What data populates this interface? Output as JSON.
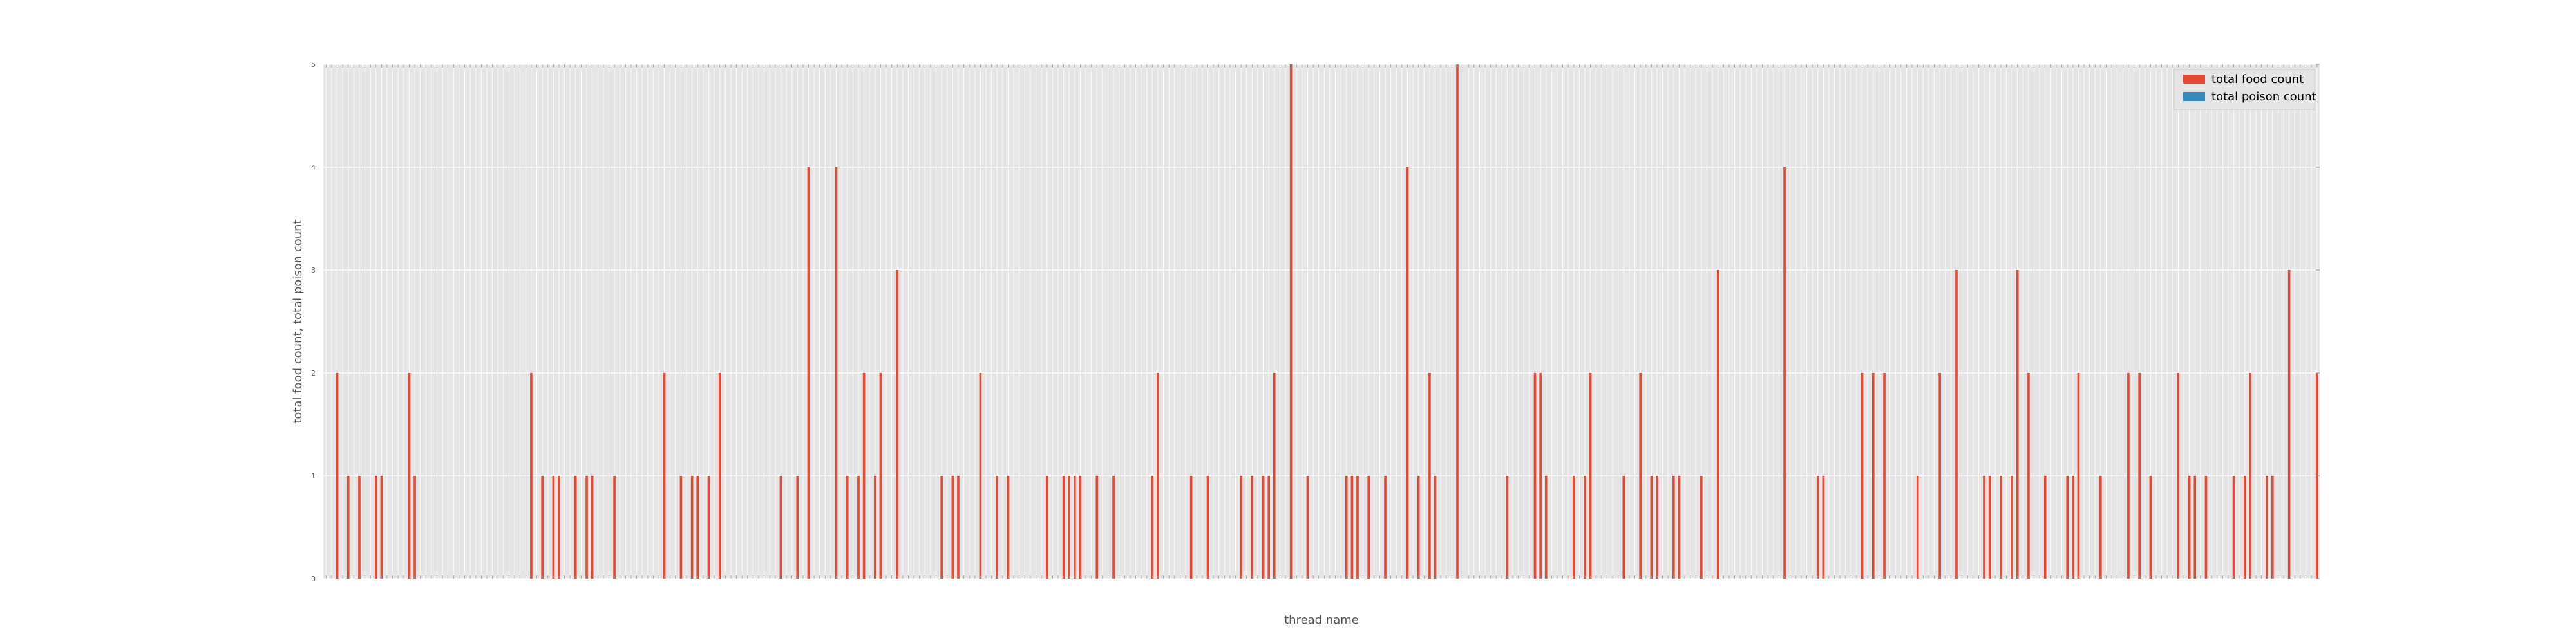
{
  "chart_data": {
    "type": "bar",
    "xlabel": "thread name",
    "ylabel": "total food count, total poison count",
    "ylim": [
      0,
      5
    ],
    "yticks": [
      "0",
      "1",
      "2",
      "3",
      "4",
      "5"
    ],
    "grid": true,
    "legend_position": "top-right",
    "x_ticks": "dense, unreadable",
    "series": [
      {
        "name": "total food count",
        "color": "#e24a33",
        "values": [
          0,
          0,
          2,
          0,
          1,
          0,
          1,
          0,
          0,
          1,
          1,
          0,
          0,
          0,
          0,
          2,
          1,
          0,
          0,
          0,
          0,
          0,
          0,
          0,
          0,
          0,
          0,
          0,
          0,
          0,
          0,
          0,
          0,
          0,
          0,
          0,
          0,
          2,
          0,
          1,
          0,
          1,
          1,
          0,
          0,
          1,
          0,
          1,
          1,
          0,
          0,
          0,
          1,
          0,
          0,
          0,
          0,
          0,
          0,
          0,
          0,
          2,
          0,
          0,
          1,
          0,
          1,
          1,
          0,
          1,
          0,
          2,
          0,
          0,
          0,
          0,
          0,
          0,
          0,
          0,
          0,
          0,
          1,
          0,
          0,
          1,
          0,
          4,
          0,
          0,
          0,
          0,
          4,
          0,
          1,
          0,
          1,
          2,
          0,
          1,
          2,
          0,
          0,
          3,
          0,
          0,
          0,
          0,
          0,
          0,
          0,
          1,
          0,
          1,
          1,
          0,
          0,
          0,
          2,
          0,
          0,
          1,
          0,
          1,
          0,
          0,
          0,
          0,
          0,
          0,
          1,
          0,
          0,
          1,
          1,
          1,
          1,
          0,
          0,
          1,
          0,
          0,
          1,
          0,
          0,
          0,
          0,
          0,
          0,
          1,
          2,
          0,
          0,
          0,
          0,
          0,
          1,
          0,
          0,
          1,
          0,
          0,
          0,
          0,
          0,
          1,
          0,
          1,
          0,
          1,
          1,
          2,
          0,
          0,
          5,
          0,
          0,
          1,
          0,
          0,
          0,
          0,
          0,
          0,
          1,
          1,
          1,
          0,
          1,
          0,
          0,
          1,
          0,
          0,
          0,
          4,
          0,
          1,
          0,
          2,
          1,
          0,
          0,
          0,
          5,
          0,
          0,
          0,
          0,
          0,
          0,
          0,
          0,
          1,
          0,
          0,
          0,
          0,
          2,
          2,
          1,
          0,
          0,
          0,
          0,
          1,
          0,
          1,
          2,
          0,
          0,
          0,
          0,
          0,
          1,
          0,
          0,
          2,
          0,
          1,
          1,
          0,
          0,
          1,
          1,
          0,
          0,
          0,
          1,
          0,
          0,
          3,
          0,
          0,
          0,
          0,
          0,
          0,
          0,
          0,
          0,
          0,
          0,
          4,
          0,
          0,
          0,
          0,
          0,
          1,
          1,
          0,
          0,
          0,
          0,
          0,
          0,
          2,
          0,
          2,
          0,
          2,
          0,
          0,
          0,
          0,
          0,
          1,
          0,
          0,
          0,
          2,
          0,
          0,
          3,
          0,
          0,
          0,
          0,
          1,
          1,
          0,
          1,
          0,
          1,
          3,
          0,
          2,
          0,
          0,
          1,
          0,
          0,
          0,
          1,
          1,
          2,
          0,
          0,
          0,
          1,
          0,
          0,
          0,
          0,
          2,
          0,
          2,
          0,
          1,
          0,
          0,
          0,
          0,
          2,
          0,
          1,
          1,
          0,
          1,
          0,
          0,
          0,
          0,
          1,
          0,
          1,
          2,
          0,
          0,
          1,
          1,
          0,
          0,
          3,
          0,
          0,
          0,
          0,
          2
        ]
      },
      {
        "name": "total poison count",
        "color": "#348abd",
        "values": [
          0,
          0,
          0,
          0,
          0,
          0,
          0,
          0,
          0,
          0,
          0,
          0,
          0,
          0,
          0,
          0,
          0,
          0,
          0,
          0,
          0,
          0,
          0,
          0,
          0,
          0,
          0,
          0,
          0,
          0,
          0,
          0,
          0,
          0,
          0,
          0,
          0,
          0,
          0,
          0,
          0,
          0,
          0,
          0,
          0,
          0,
          0,
          0,
          0,
          0,
          0,
          0,
          0,
          0,
          0,
          0,
          0,
          0,
          0,
          0,
          0,
          0,
          0,
          0,
          0,
          0,
          0,
          0,
          0,
          0,
          0,
          0,
          0,
          0,
          0,
          0,
          0,
          0,
          0,
          0,
          0,
          0,
          0,
          0,
          0,
          0,
          0,
          0,
          0,
          0,
          0,
          0,
          0,
          0,
          0,
          0,
          0,
          0,
          0,
          0,
          0,
          0,
          0,
          0,
          0,
          0,
          0,
          0,
          0,
          0,
          0,
          0,
          0,
          0,
          0,
          0,
          0,
          0,
          0,
          0,
          0,
          0,
          0,
          0,
          0,
          0,
          0,
          0,
          0,
          0,
          0,
          0,
          0,
          0,
          0,
          0,
          0,
          0,
          0,
          0,
          0,
          0,
          0,
          0,
          0,
          0,
          0,
          0,
          0,
          0,
          0,
          0,
          0,
          0,
          0,
          0,
          0,
          0,
          0,
          0,
          0,
          0,
          0,
          0,
          0,
          0,
          0,
          0,
          0,
          0,
          0,
          0,
          0,
          0,
          0,
          0,
          0,
          0,
          0,
          0,
          0,
          0,
          0,
          0,
          0,
          0,
          0,
          0,
          0,
          0,
          0,
          0,
          0,
          0,
          0,
          0,
          0,
          0,
          0,
          0,
          0,
          0,
          0,
          0,
          0,
          0,
          0,
          0,
          0,
          0,
          0,
          0,
          0,
          0,
          0,
          0,
          0,
          0,
          0,
          0,
          0,
          0,
          0,
          0,
          0,
          0,
          0,
          0,
          0,
          0,
          0,
          0,
          0,
          0,
          0,
          0,
          0,
          0,
          0,
          0,
          0,
          0,
          0,
          0,
          0,
          0,
          0,
          0,
          0,
          0,
          0,
          0,
          0,
          0,
          0,
          0,
          0,
          0,
          0,
          0,
          0,
          0,
          0,
          0,
          0,
          0,
          0,
          0,
          0,
          0,
          0,
          0,
          0,
          0,
          0,
          0,
          0,
          0,
          0,
          0,
          0,
          0,
          0,
          0,
          0,
          0,
          0,
          0,
          0,
          0,
          0,
          0,
          0,
          0,
          0,
          0,
          0,
          0,
          0,
          0,
          0,
          0,
          0,
          0,
          0,
          0,
          0,
          0,
          0,
          0,
          0,
          0,
          0,
          0,
          0,
          0,
          0,
          0,
          0,
          0,
          0,
          0,
          0,
          0,
          0,
          0,
          0,
          0,
          0,
          0,
          0,
          0,
          0,
          0,
          0,
          0,
          0,
          0,
          0,
          0,
          0,
          0,
          0,
          0,
          0,
          0,
          0,
          0,
          0,
          0,
          0,
          0,
          0,
          0,
          0,
          0,
          0,
          0,
          0,
          0,
          0,
          0,
          0,
          0,
          0,
          0,
          0,
          0,
          0,
          0,
          0
        ]
      }
    ]
  }
}
